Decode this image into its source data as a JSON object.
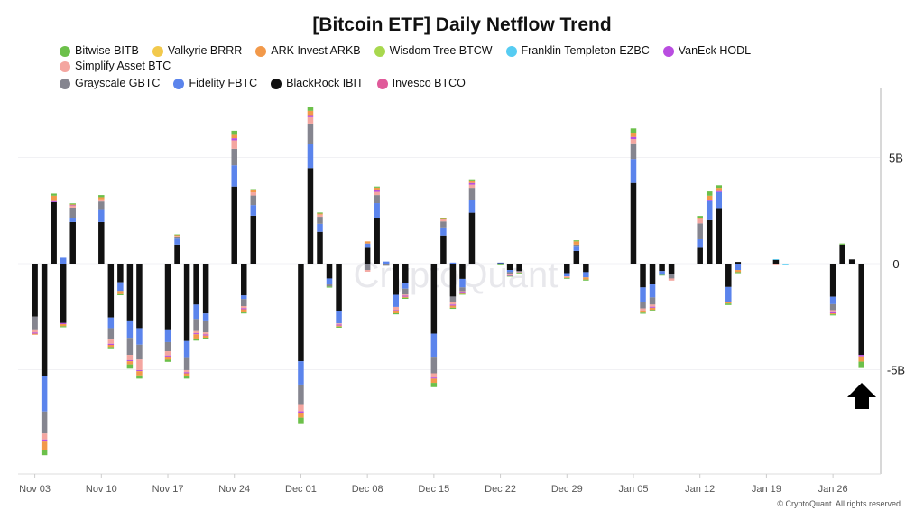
{
  "footer": "© CryptoQuant. All rights reserved",
  "watermark": "CryptoQuant",
  "chart_data": {
    "type": "bar",
    "stacked": true,
    "title": "[Bitcoin ETF] Daily Netflow Trend",
    "legend_placement": "top",
    "legend": [
      {
        "name": "Bitwise BITB",
        "color": "#6cc04a"
      },
      {
        "name": "Valkyrie BRRR",
        "color": "#f2c94c"
      },
      {
        "name": "ARK Invest ARKB",
        "color": "#f2994a"
      },
      {
        "name": "Wisdom Tree BTCW",
        "color": "#a8d84e"
      },
      {
        "name": "Franklin Templeton EZBC",
        "color": "#56ccf2"
      },
      {
        "name": "VanEck HODL",
        "color": "#b94de0"
      },
      {
        "name": "Simplify Asset BTC",
        "color": "#f4a6a0"
      },
      {
        "name": "Grayscale GBTC",
        "color": "#85858f"
      },
      {
        "name": "Fidelity FBTC",
        "color": "#5b84ec"
      },
      {
        "name": "BlackRock IBIT",
        "color": "#111111"
      },
      {
        "name": "Invesco BTCO",
        "color": "#e05a9a"
      }
    ],
    "y_axis": {
      "ticks": [
        {
          "value": 5,
          "label": "5B"
        },
        {
          "value": 0,
          "label": "0"
        },
        {
          "value": -5,
          "label": "-5B"
        }
      ],
      "unit": "B USD",
      "ylim": [
        -9.8,
        8.3
      ],
      "position": "right"
    },
    "x_axis": {
      "start": "2024-11-03",
      "ticks": [
        "Nov 03",
        "Nov 10",
        "Nov 17",
        "Nov 24",
        "Dec 01",
        "Dec 08",
        "Dec 15",
        "Dec 22",
        "Dec 29",
        "Jan 05",
        "Jan 12",
        "Jan 19",
        "Jan 26"
      ]
    },
    "grid": true,
    "annotation": "up-arrow-under-last-bar",
    "dates": [
      "2024-11-03",
      "2024-11-04",
      "2024-11-05",
      "2024-11-06",
      "2024-11-07",
      "2024-11-10",
      "2024-11-11",
      "2024-11-12",
      "2024-11-13",
      "2024-11-14",
      "2024-11-17",
      "2024-11-18",
      "2024-11-19",
      "2024-11-20",
      "2024-11-21",
      "2024-11-24",
      "2024-11-25",
      "2024-11-26",
      "2024-12-01",
      "2024-12-02",
      "2024-12-03",
      "2024-12-04",
      "2024-12-05",
      "2024-12-08",
      "2024-12-09",
      "2024-12-10",
      "2024-12-11",
      "2024-12-12",
      "2024-12-15",
      "2024-12-16",
      "2024-12-17",
      "2024-12-18",
      "2024-12-19",
      "2024-12-22",
      "2024-12-23",
      "2024-12-24",
      "2024-12-29",
      "2024-12-30",
      "2024-12-31",
      "2025-01-05",
      "2025-01-06",
      "2025-01-07",
      "2025-01-08",
      "2025-01-09",
      "2025-01-12",
      "2025-01-13",
      "2025-01-14",
      "2025-01-15",
      "2025-01-16",
      "2025-01-20",
      "2025-01-21",
      "2025-01-26",
      "2025-01-27",
      "2025-01-28",
      "2025-01-29"
    ],
    "series": [
      {
        "name": "BlackRock IBIT",
        "color": "#111111",
        "values": [
          -2.5,
          -5.28,
          2.9,
          -2.8,
          1.96,
          1.96,
          -2.54,
          -0.88,
          -2.72,
          -3.04,
          -3.1,
          0.9,
          -3.65,
          -1.93,
          -2.35,
          3.63,
          -1.5,
          2.26,
          -4.6,
          4.5,
          1.5,
          -0.7,
          -2.25,
          0.75,
          2.17,
          0,
          -1.47,
          -0.9,
          -3.3,
          1.33,
          -1.55,
          -0.72,
          2.4,
          0.03,
          -0.3,
          -0.35,
          -0.45,
          0.6,
          -0.4,
          3.8,
          -1.12,
          -0.98,
          -0.35,
          -0.5,
          0.75,
          2.05,
          2.62,
          -1.1,
          0.08,
          0.18,
          0,
          -1.56,
          0.9,
          0.2,
          -4.3
        ]
      },
      {
        "name": "Fidelity FBTC",
        "color": "#5b84ec",
        "values": [
          0,
          -1.69,
          0,
          0.28,
          0.2,
          0.57,
          -0.5,
          -0.41,
          -0.78,
          -0.78,
          -0.6,
          0.28,
          -0.8,
          -0.68,
          -0.37,
          1.0,
          -0.17,
          0.5,
          -1.1,
          1.15,
          0.38,
          -0.28,
          -0.57,
          0.2,
          0.68,
          0.1,
          -0.57,
          -0.28,
          -1.13,
          0.38,
          0.05,
          -0.4,
          0.6,
          0.02,
          -0.1,
          0,
          -0.15,
          0.2,
          -0.25,
          1.13,
          -0.71,
          -0.61,
          -0.18,
          0,
          0.4,
          0.9,
          0.75,
          -0.7,
          -0.3,
          0,
          0,
          -0.35,
          0,
          0,
          0
        ]
      },
      {
        "name": "Grayscale GBTC",
        "color": "#85858f",
        "values": [
          -0.6,
          -1.04,
          0,
          0,
          0.48,
          0.4,
          -0.54,
          0,
          -0.8,
          -0.7,
          -0.43,
          0.1,
          -0.57,
          -0.57,
          -0.52,
          0.78,
          -0.33,
          0.45,
          -0.96,
          0.95,
          0.33,
          -0.1,
          0,
          -0.3,
          0.38,
          -0.1,
          0,
          -0.28,
          -0.74,
          0.28,
          -0.28,
          -0.18,
          0.57,
          0,
          -0.1,
          -0.05,
          0,
          0.1,
          0,
          0.74,
          -0.28,
          -0.34,
          0,
          -0.2,
          0.75,
          0,
          0,
          0,
          0,
          0,
          0,
          -0.28,
          0,
          0,
          0
        ]
      },
      {
        "name": "Simplify Asset BTC",
        "color": "#f4a6a0",
        "values": [
          -0.15,
          -0.28,
          0,
          0,
          0.1,
          0.1,
          -0.2,
          0,
          -0.25,
          -0.5,
          -0.2,
          0.03,
          -0.1,
          -0.1,
          -0.1,
          0.4,
          -0.1,
          0.15,
          -0.3,
          0.3,
          0.1,
          0,
          -0.05,
          -0.08,
          0.15,
          0,
          -0.15,
          -0.05,
          -0.2,
          0.1,
          -0.1,
          -0.05,
          0.15,
          0,
          -0.05,
          -0.03,
          -0.05,
          0,
          0,
          0.2,
          -0.1,
          -0.1,
          0,
          -0.1,
          0.2,
          0,
          0,
          0,
          0,
          -0.03,
          0,
          -0.1,
          0,
          0,
          0
        ]
      },
      {
        "name": "VanEck HODL",
        "color": "#b94de0",
        "values": [
          -0.05,
          -0.1,
          0.05,
          -0.05,
          0.03,
          0,
          -0.05,
          0,
          -0.05,
          -0.05,
          -0.05,
          0,
          -0.05,
          -0.05,
          -0.05,
          0.1,
          -0.05,
          0,
          -0.1,
          0.1,
          0,
          0,
          -0.05,
          0,
          0.1,
          0,
          -0.05,
          -0.05,
          -0.05,
          0,
          -0.05,
          -0.05,
          0.08,
          0,
          -0.03,
          0,
          0,
          0,
          0,
          0.1,
          -0.03,
          -0.05,
          0,
          0,
          0,
          0.05,
          0.05,
          0,
          0,
          0,
          0,
          -0.05,
          0,
          0,
          -0.07
        ]
      },
      {
        "name": "ARK Invest ARKB",
        "color": "#f2994a",
        "values": [
          -0.05,
          -0.4,
          0.25,
          -0.1,
          0.02,
          0.1,
          -0.1,
          -0.15,
          -0.15,
          -0.2,
          -0.15,
          0.05,
          -0.15,
          -0.2,
          -0.1,
          0.2,
          -0.15,
          0.1,
          -0.2,
          0.2,
          0.05,
          0,
          -0.05,
          0.1,
          0.1,
          0,
          -0.1,
          -0.05,
          -0.2,
          0.03,
          -0.1,
          -0.03,
          0.12,
          0,
          0,
          0,
          -0.03,
          0.15,
          -0.1,
          0.2,
          -0.07,
          -0.1,
          0,
          0,
          0.05,
          0.2,
          0.15,
          -0.08,
          -0.1,
          0,
          0,
          -0.05,
          0,
          0,
          -0.25
        ]
      },
      {
        "name": "Bitwise BITB",
        "color": "#6cc04a",
        "values": [
          0,
          -0.24,
          0.1,
          -0.05,
          0.05,
          0.1,
          -0.1,
          -0.05,
          -0.2,
          -0.15,
          -0.1,
          0.02,
          -0.1,
          -0.1,
          -0.05,
          0.15,
          -0.05,
          0.05,
          -0.3,
          0.2,
          0.05,
          -0.05,
          -0.05,
          0,
          0.05,
          0,
          -0.05,
          -0.05,
          -0.2,
          0.02,
          -0.05,
          -0.02,
          0.05,
          -0.03,
          -0.02,
          -0.02,
          -0.02,
          0.05,
          -0.05,
          0.2,
          -0.05,
          -0.05,
          -0.02,
          0,
          0.1,
          0.2,
          0.12,
          -0.07,
          -0.05,
          0,
          0,
          -0.05,
          0.05,
          0,
          -0.3
        ]
      },
      {
        "name": "Franklin Templeton EZBC",
        "color": "#56ccf2",
        "values": [
          0,
          0,
          0,
          0,
          0,
          0,
          0,
          0,
          0,
          0,
          0,
          0,
          0,
          0,
          0,
          0,
          0,
          0,
          0,
          0,
          0,
          0,
          0,
          0,
          0,
          0,
          0,
          0,
          0,
          0,
          0,
          0,
          0,
          0,
          0,
          0,
          0,
          0,
          0,
          0,
          0,
          0,
          0,
          0,
          0,
          0,
          0,
          0,
          0,
          0.03,
          -0.03,
          0,
          0,
          0,
          0
        ]
      }
    ]
  }
}
